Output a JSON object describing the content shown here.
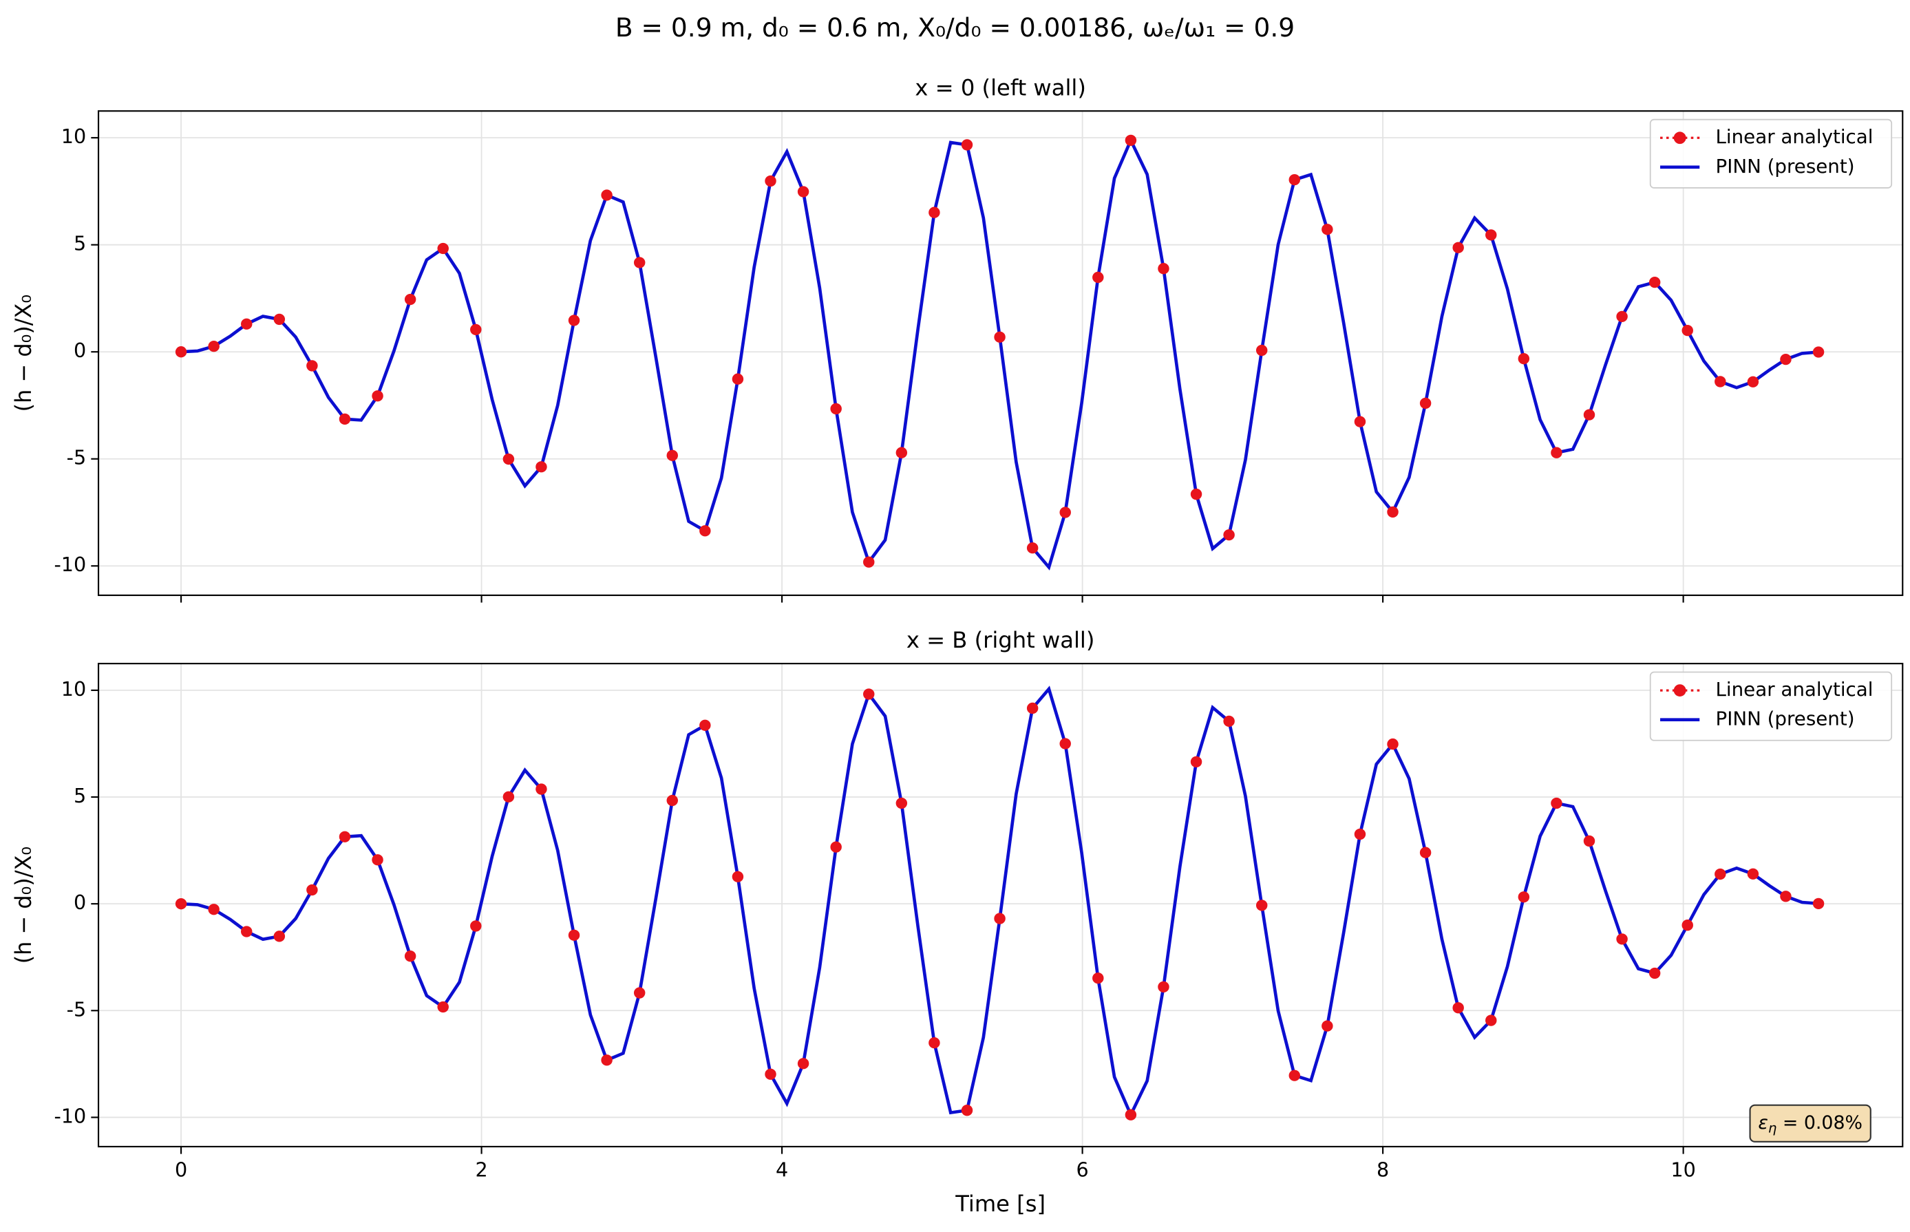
{
  "title": "B = 0.9 m, d₀ = 0.6 m, X₀/d₀ = 0.00186, ωₑ/ω₁ = 0.9",
  "chart_data": [
    {
      "type": "line",
      "title": "x = 0 (left wall)",
      "ylabel": "(h − d₀)/X₀",
      "show_xtick_labels": false,
      "xlim": [
        -0.55,
        11.46
      ],
      "ylim": [
        -11.37,
        11.25
      ],
      "xticks": [
        0,
        2,
        4,
        6,
        8,
        10
      ],
      "yticks": [
        -10,
        -5,
        0,
        5,
        10
      ],
      "grid": true,
      "legend": "upper right",
      "series": [
        {
          "name": "Linear analytical",
          "color": "#e8141c",
          "linestyle": "dotted",
          "marker": true,
          "x": [
            0,
            0.218,
            0.436,
            0.654,
            0.872,
            1.09,
            1.308,
            1.526,
            1.744,
            1.962,
            2.18,
            2.398,
            2.616,
            2.834,
            3.052,
            3.27,
            3.488,
            3.706,
            3.924,
            4.142,
            4.36,
            4.578,
            4.796,
            5.014,
            5.232,
            5.45,
            5.668,
            5.886,
            6.104,
            6.322,
            6.54,
            6.758,
            6.976,
            7.194,
            7.412,
            7.63,
            7.848,
            8.066,
            8.284,
            8.502,
            8.72,
            8.938,
            9.156,
            9.374,
            9.592,
            9.81,
            10.028,
            10.246,
            10.464,
            10.682,
            10.9
          ],
          "values": [
            0,
            0.26,
            1.3,
            1.52,
            -0.65,
            -3.14,
            -2.06,
            2.45,
            4.83,
            1.04,
            -5.01,
            -5.37,
            1.47,
            7.32,
            4.17,
            -4.84,
            -8.36,
            -1.27,
            7.98,
            7.48,
            -2.66,
            -9.82,
            -4.71,
            6.51,
            9.67,
            0.69,
            -9.16,
            -7.5,
            3.48,
            9.88,
            3.89,
            -6.65,
            -8.55,
            0.07,
            8.04,
            5.72,
            -3.26,
            -7.48,
            -2.4,
            4.87,
            5.46,
            -0.32,
            -4.71,
            -2.94,
            1.65,
            3.25,
            1,
            -1.39,
            -1.4,
            -0.35,
            -0.01
          ]
        },
        {
          "name": "PINN (present)",
          "color": "#0c0fd0",
          "linestyle": "solid",
          "marker": false,
          "x": [
            0,
            0.109,
            0.218,
            0.327,
            0.436,
            0.545,
            0.654,
            0.763,
            0.872,
            0.981,
            1.09,
            1.199,
            1.308,
            1.417,
            1.526,
            1.635,
            1.744,
            1.853,
            1.962,
            2.071,
            2.18,
            2.289,
            2.398,
            2.507,
            2.616,
            2.725,
            2.834,
            2.943,
            3.052,
            3.161,
            3.27,
            3.379,
            3.488,
            3.597,
            3.706,
            3.815,
            3.924,
            4.033,
            4.142,
            4.251,
            4.36,
            4.469,
            4.578,
            4.687,
            4.796,
            4.905,
            5.014,
            5.123,
            5.232,
            5.341,
            5.45,
            5.559,
            5.668,
            5.777,
            5.886,
            5.995,
            6.104,
            6.213,
            6.322,
            6.431,
            6.54,
            6.649,
            6.758,
            6.867,
            6.976,
            7.085,
            7.194,
            7.303,
            7.412,
            7.521,
            7.63,
            7.739,
            7.848,
            7.957,
            8.066,
            8.175,
            8.284,
            8.393,
            8.502,
            8.611,
            8.72,
            8.829,
            8.938,
            9.047,
            9.156,
            9.265,
            9.374,
            9.483,
            9.592,
            9.701,
            9.81,
            9.919,
            10.028,
            10.137,
            10.246,
            10.355,
            10.464,
            10.573,
            10.682,
            10.791,
            10.9
          ],
          "values": [
            0,
            0.04,
            0.26,
            0.73,
            1.3,
            1.66,
            1.52,
            0.69,
            -0.65,
            -2.13,
            -3.14,
            -3.19,
            -2.06,
            0.04,
            2.45,
            4.3,
            4.83,
            3.67,
            1.04,
            -2.23,
            -5.01,
            -6.26,
            -5.37,
            -2.5,
            1.47,
            5.2,
            7.32,
            7,
            4.17,
            -0.27,
            -4.84,
            -7.92,
            -8.36,
            -5.89,
            -1.27,
            3.96,
            7.98,
            9.35,
            7.48,
            2.99,
            -2.66,
            -7.49,
            -9.82,
            -8.79,
            -4.71,
            1.05,
            6.51,
            9.78,
            9.67,
            6.26,
            0.69,
            -5.14,
            -9.16,
            -10.06,
            -7.5,
            -2.4,
            3.48,
            8.11,
            9.88,
            8.29,
            3.89,
            -1.73,
            -6.65,
            -9.19,
            -8.55,
            -5.05,
            0.07,
            5.01,
            8.04,
            8.28,
            5.72,
            1.35,
            -3.26,
            -6.54,
            -7.48,
            -5.86,
            -2.4,
            1.65,
            4.87,
            6.25,
            5.46,
            2.94,
            -0.32,
            -3.17,
            -4.71,
            -4.55,
            -2.94,
            -0.59,
            1.65,
            3.04,
            3.25,
            2.41,
            1,
            -0.43,
            -1.39,
            -1.67,
            -1.4,
            -0.85,
            -0.35,
            -0.07,
            -0.01
          ]
        }
      ]
    },
    {
      "type": "line",
      "title": "x = B (right wall)",
      "ylabel": "(h − d₀)/X₀",
      "xlabel": "Time  [s]",
      "show_xtick_labels": true,
      "xlim": [
        -0.55,
        11.46
      ],
      "ylim": [
        -11.37,
        11.25
      ],
      "xticks": [
        0,
        2,
        4,
        6,
        8,
        10
      ],
      "yticks": [
        -10,
        -5,
        0,
        5,
        10
      ],
      "grid": true,
      "legend": "upper right",
      "annotation": {
        "symbol": "ε",
        "subscript": "η",
        "text": " = 0.08%",
        "background": "#f5deb3"
      },
      "series": [
        {
          "name": "Linear analytical",
          "color": "#e8141c",
          "linestyle": "dotted",
          "marker": true,
          "x": [
            0,
            0.218,
            0.436,
            0.654,
            0.872,
            1.09,
            1.308,
            1.526,
            1.744,
            1.962,
            2.18,
            2.398,
            2.616,
            2.834,
            3.052,
            3.27,
            3.488,
            3.706,
            3.924,
            4.142,
            4.36,
            4.578,
            4.796,
            5.014,
            5.232,
            5.45,
            5.668,
            5.886,
            6.104,
            6.322,
            6.54,
            6.758,
            6.976,
            7.194,
            7.412,
            7.63,
            7.848,
            8.066,
            8.284,
            8.502,
            8.72,
            8.938,
            9.156,
            9.374,
            9.592,
            9.81,
            10.028,
            10.246,
            10.464,
            10.682,
            10.9
          ],
          "values": [
            0,
            -0.26,
            -1.3,
            -1.52,
            0.65,
            3.14,
            2.06,
            -2.45,
            -4.83,
            -1.04,
            5.01,
            5.37,
            -1.47,
            -7.32,
            -4.17,
            4.84,
            8.36,
            1.27,
            -7.98,
            -7.48,
            2.66,
            9.82,
            4.71,
            -6.51,
            -9.67,
            -0.69,
            9.16,
            7.5,
            -3.48,
            -9.88,
            -3.89,
            6.65,
            8.55,
            -0.07,
            -8.04,
            -5.72,
            3.26,
            7.48,
            2.4,
            -4.87,
            -5.46,
            0.32,
            4.71,
            2.94,
            -1.65,
            -3.25,
            -1,
            1.39,
            1.4,
            0.35,
            0.01
          ]
        },
        {
          "name": "PINN (present)",
          "color": "#0c0fd0",
          "linestyle": "solid",
          "marker": false,
          "x": [
            0,
            0.109,
            0.218,
            0.327,
            0.436,
            0.545,
            0.654,
            0.763,
            0.872,
            0.981,
            1.09,
            1.199,
            1.308,
            1.417,
            1.526,
            1.635,
            1.744,
            1.853,
            1.962,
            2.071,
            2.18,
            2.289,
            2.398,
            2.507,
            2.616,
            2.725,
            2.834,
            2.943,
            3.052,
            3.161,
            3.27,
            3.379,
            3.488,
            3.597,
            3.706,
            3.815,
            3.924,
            4.033,
            4.142,
            4.251,
            4.36,
            4.469,
            4.578,
            4.687,
            4.796,
            4.905,
            5.014,
            5.123,
            5.232,
            5.341,
            5.45,
            5.559,
            5.668,
            5.777,
            5.886,
            5.995,
            6.104,
            6.213,
            6.322,
            6.431,
            6.54,
            6.649,
            6.758,
            6.867,
            6.976,
            7.085,
            7.194,
            7.303,
            7.412,
            7.521,
            7.63,
            7.739,
            7.848,
            7.957,
            8.066,
            8.175,
            8.284,
            8.393,
            8.502,
            8.611,
            8.72,
            8.829,
            8.938,
            9.047,
            9.156,
            9.265,
            9.374,
            9.483,
            9.592,
            9.701,
            9.81,
            9.919,
            10.028,
            10.137,
            10.246,
            10.355,
            10.464,
            10.573,
            10.682,
            10.791,
            10.9
          ],
          "values": [
            0,
            -0.04,
            -0.26,
            -0.73,
            -1.3,
            -1.66,
            -1.52,
            -0.69,
            0.65,
            2.13,
            3.14,
            3.19,
            2.06,
            -0.04,
            -2.45,
            -4.3,
            -4.83,
            -3.67,
            -1.04,
            2.23,
            5.01,
            6.26,
            5.37,
            2.5,
            -1.47,
            -5.2,
            -7.32,
            -7,
            -4.17,
            0.27,
            4.84,
            7.92,
            8.36,
            5.89,
            1.27,
            -3.96,
            -7.98,
            -9.35,
            -7.48,
            -2.99,
            2.66,
            7.49,
            9.82,
            8.79,
            4.71,
            -1.05,
            -6.51,
            -9.78,
            -9.67,
            -6.26,
            -0.69,
            5.14,
            9.16,
            10.06,
            7.5,
            2.4,
            -3.48,
            -8.11,
            -9.88,
            -8.29,
            -3.89,
            1.73,
            6.65,
            9.19,
            8.55,
            5.05,
            -0.07,
            -5.01,
            -8.04,
            -8.28,
            -5.72,
            -1.35,
            3.26,
            6.54,
            7.48,
            5.86,
            2.4,
            -1.65,
            -4.87,
            -6.25,
            -5.46,
            -2.94,
            0.32,
            3.17,
            4.71,
            4.55,
            2.94,
            0.59,
            -1.65,
            -3.04,
            -3.25,
            -2.41,
            -1,
            0.43,
            1.39,
            1.67,
            1.4,
            0.85,
            0.35,
            0.07,
            0.01
          ]
        }
      ]
    }
  ]
}
